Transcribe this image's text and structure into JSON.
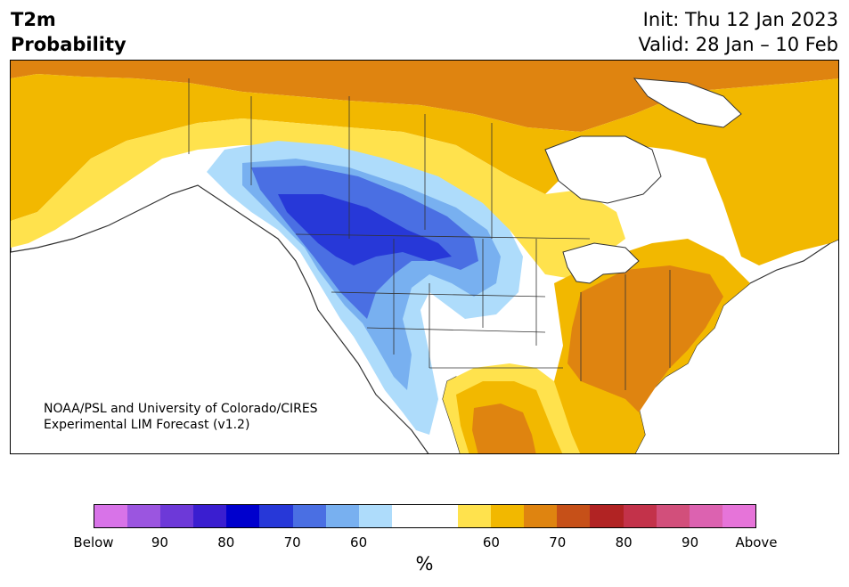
{
  "title": {
    "line1": "T2m",
    "line2": "Probability"
  },
  "init_label": "Init: Thu 12 Jan 2023",
  "valid_label": "Valid: 28 Jan – 10 Feb",
  "credit": {
    "line1": "NOAA/PSL and University of Colorado/CIRES",
    "line2": "Experimental LIM Forecast (v1.2)"
  },
  "colorbar": {
    "unit_label": "%",
    "colors": [
      "#d873e8",
      "#9b55e0",
      "#6d39d8",
      "#3a1ed0",
      "#0000cd",
      "#2738d8",
      "#4a6fe3",
      "#78b0f0",
      "#aedcfb",
      "#ffffff",
      "#ffffff",
      "#ffe24d",
      "#f2b800",
      "#df8410",
      "#c65018",
      "#b12323",
      "#c3324a",
      "#d24f7b",
      "#dc62b0",
      "#e674d9"
    ],
    "tick_labels": [
      "Below",
      "90",
      "80",
      "70",
      "60",
      "60",
      "70",
      "80",
      "90",
      "Above"
    ]
  },
  "map_colors": {
    "light_blue": "#aedcfb",
    "mid_blue": "#78b0f0",
    "blue": "#4a6fe3",
    "deep_blue": "#2738d8",
    "yellow": "#ffe24d",
    "gold": "#f2b800",
    "orange": "#df8410",
    "land_outline": "#333333"
  }
}
